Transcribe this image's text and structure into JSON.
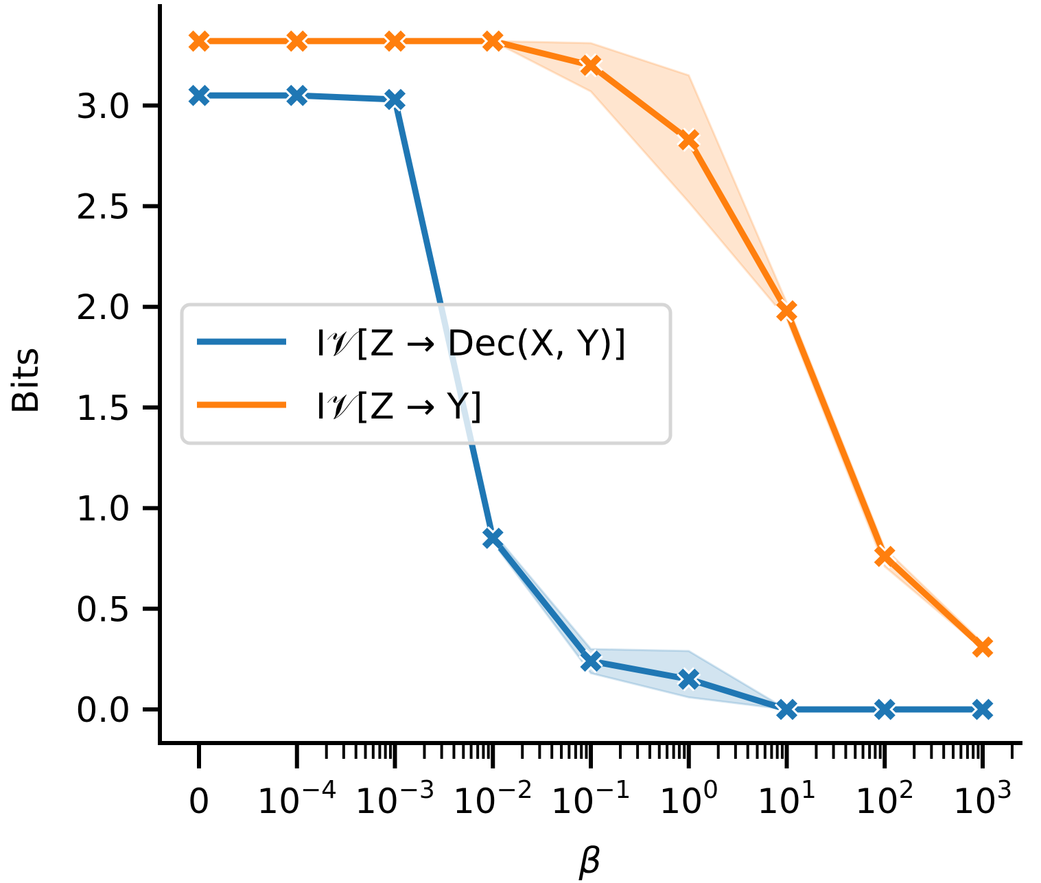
{
  "chart_data": {
    "type": "line",
    "xlabel": "β",
    "ylabel": "Bits",
    "x": [
      "0",
      "1e-4",
      "1e-3",
      "1e-2",
      "1e-1",
      "1e0",
      "1e1",
      "1e2",
      "1e3"
    ],
    "x_tick_labels": [
      {
        "base": "0",
        "exp": ""
      },
      {
        "base": "10",
        "exp": "−4"
      },
      {
        "base": "10",
        "exp": "−3"
      },
      {
        "base": "10",
        "exp": "−2"
      },
      {
        "base": "10",
        "exp": "−1"
      },
      {
        "base": "10",
        "exp": "0"
      },
      {
        "base": "10",
        "exp": "1"
      },
      {
        "base": "10",
        "exp": "2"
      },
      {
        "base": "10",
        "exp": "3"
      }
    ],
    "y_ticks": [
      "0.0",
      "0.5",
      "1.0",
      "1.5",
      "2.0",
      "2.5",
      "3.0"
    ],
    "ylim": [
      -0.17,
      3.49
    ],
    "grid": false,
    "legend_position": "center-left",
    "series": [
      {
        "name": "I𝒱[Z → Dec(X, Y)]",
        "color": "#1f77b4",
        "values": [
          3.05,
          3.05,
          3.03,
          0.85,
          0.24,
          0.15,
          0.0,
          0.0,
          0.0
        ],
        "lower": [
          3.05,
          3.05,
          3.03,
          0.83,
          0.18,
          0.06,
          0.0,
          0.0,
          0.0
        ],
        "upper": [
          3.05,
          3.05,
          3.03,
          0.88,
          0.3,
          0.29,
          0.0,
          0.0,
          0.0
        ]
      },
      {
        "name": "I𝒱[Z → Y]",
        "color": "#ff7f0e",
        "values": [
          3.32,
          3.32,
          3.32,
          3.32,
          3.2,
          2.83,
          1.98,
          0.76,
          0.31
        ],
        "lower": [
          3.32,
          3.32,
          3.32,
          3.32,
          3.07,
          2.52,
          1.94,
          0.71,
          0.3
        ],
        "upper": [
          3.32,
          3.32,
          3.32,
          3.32,
          3.31,
          3.15,
          2.02,
          0.8,
          0.33
        ]
      }
    ]
  }
}
